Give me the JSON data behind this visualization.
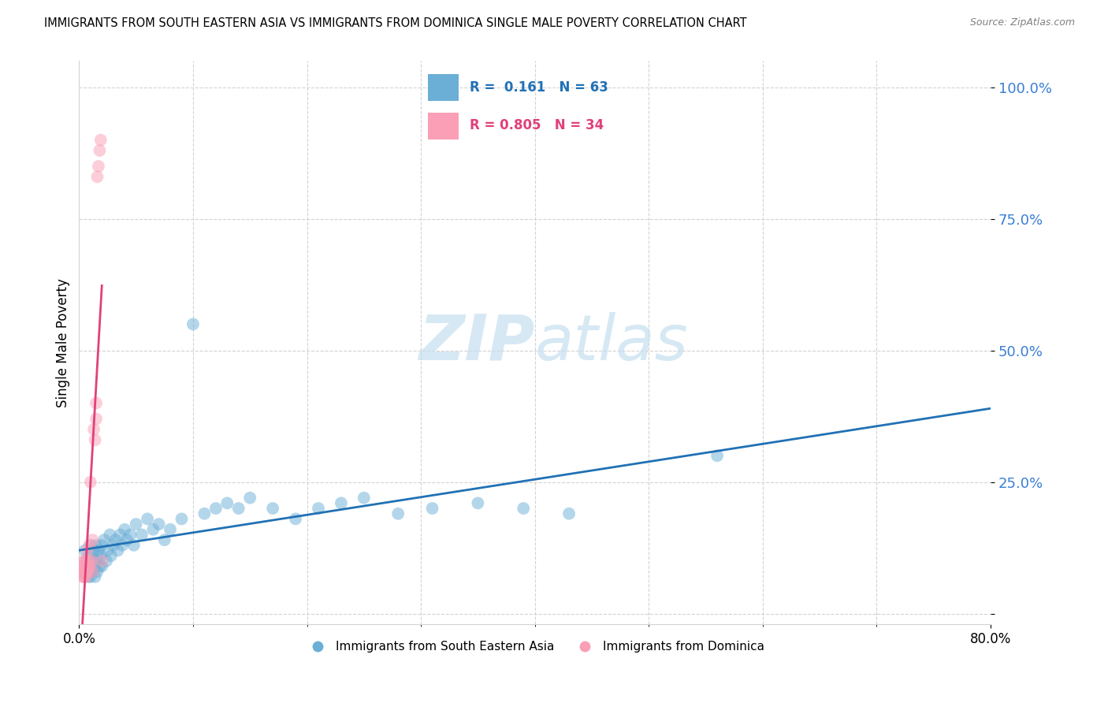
{
  "title": "IMMIGRANTS FROM SOUTH EASTERN ASIA VS IMMIGRANTS FROM DOMINICA SINGLE MALE POVERTY CORRELATION CHART",
  "source": "Source: ZipAtlas.com",
  "ylabel": "Single Male Poverty",
  "watermark_part1": "ZIP",
  "watermark_part2": "atlas",
  "blue_R": "0.161",
  "blue_N": "63",
  "pink_R": "0.805",
  "pink_N": "34",
  "blue_color": "#6baed6",
  "pink_color": "#fa9fb5",
  "blue_line_color": "#2171b5",
  "pink_line_color": "#e0417a",
  "xlim": [
    0.0,
    0.8
  ],
  "ylim": [
    -0.02,
    1.05
  ],
  "ytick_positions": [
    0.0,
    0.25,
    0.5,
    0.75,
    1.0
  ],
  "ytick_labels": [
    "",
    "25.0%",
    "50.0%",
    "75.0%",
    "100.0%"
  ],
  "blue_scatter_x": [
    0.005,
    0.006,
    0.007,
    0.008,
    0.008,
    0.009,
    0.009,
    0.01,
    0.01,
    0.01,
    0.012,
    0.012,
    0.013,
    0.014,
    0.014,
    0.015,
    0.015,
    0.016,
    0.016,
    0.017,
    0.018,
    0.019,
    0.02,
    0.02,
    0.022,
    0.024,
    0.025,
    0.027,
    0.028,
    0.03,
    0.032,
    0.034,
    0.036,
    0.038,
    0.04,
    0.042,
    0.045,
    0.048,
    0.05,
    0.055,
    0.06,
    0.065,
    0.07,
    0.075,
    0.08,
    0.09,
    0.1,
    0.11,
    0.12,
    0.13,
    0.14,
    0.15,
    0.17,
    0.19,
    0.21,
    0.23,
    0.25,
    0.28,
    0.31,
    0.35,
    0.39,
    0.43,
    0.56
  ],
  "blue_scatter_y": [
    0.12,
    0.1,
    0.08,
    0.09,
    0.07,
    0.11,
    0.08,
    0.13,
    0.09,
    0.07,
    0.1,
    0.08,
    0.12,
    0.09,
    0.07,
    0.13,
    0.1,
    0.11,
    0.08,
    0.12,
    0.09,
    0.11,
    0.13,
    0.09,
    0.14,
    0.1,
    0.12,
    0.15,
    0.11,
    0.13,
    0.14,
    0.12,
    0.15,
    0.13,
    0.16,
    0.14,
    0.15,
    0.13,
    0.17,
    0.15,
    0.18,
    0.16,
    0.17,
    0.14,
    0.16,
    0.18,
    0.55,
    0.19,
    0.2,
    0.21,
    0.2,
    0.22,
    0.2,
    0.18,
    0.2,
    0.21,
    0.22,
    0.19,
    0.2,
    0.21,
    0.2,
    0.19,
    0.3
  ],
  "pink_scatter_x": [
    0.003,
    0.003,
    0.003,
    0.004,
    0.004,
    0.004,
    0.004,
    0.005,
    0.005,
    0.005,
    0.006,
    0.006,
    0.006,
    0.007,
    0.007,
    0.007,
    0.008,
    0.008,
    0.009,
    0.009,
    0.01,
    0.01,
    0.011,
    0.012,
    0.012,
    0.013,
    0.014,
    0.015,
    0.015,
    0.016,
    0.017,
    0.018,
    0.019,
    0.02
  ],
  "pink_scatter_y": [
    0.07,
    0.08,
    0.09,
    0.07,
    0.08,
    0.09,
    0.1,
    0.07,
    0.08,
    0.1,
    0.07,
    0.08,
    0.09,
    0.08,
    0.1,
    0.12,
    0.08,
    0.09,
    0.1,
    0.13,
    0.09,
    0.25,
    0.1,
    0.08,
    0.14,
    0.35,
    0.33,
    0.37,
    0.4,
    0.83,
    0.85,
    0.88,
    0.9,
    0.1
  ]
}
